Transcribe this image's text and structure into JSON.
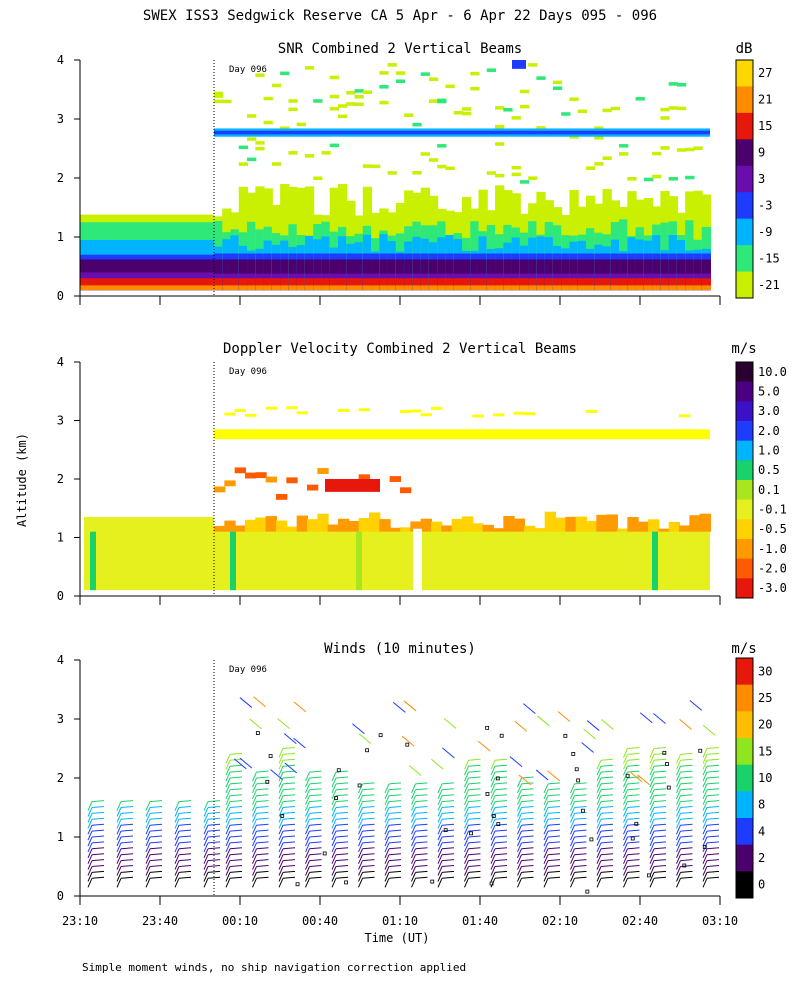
{
  "title": "SWEX ISS3 Sedgwick Reserve CA   5 Apr -  6 Apr 22 Days 095 - 096",
  "footnote": "Simple moment winds, no ship navigation correction applied",
  "ylabel": "Altitude (km)",
  "xlabel": "Time (UT)",
  "day_marker": "Day 096",
  "chart_data": [
    {
      "type": "heatmap",
      "title": "SNR Combined 2 Vertical Beams",
      "units": "dB",
      "ylim": [
        0,
        4
      ],
      "yticks": [
        0,
        1,
        2,
        3,
        4
      ],
      "colorbar_labels": [
        "27",
        "21",
        "15",
        "9",
        "3",
        "-3",
        "-9",
        "-15",
        "-21"
      ],
      "colorbar_colors": [
        "#ffd700",
        "#ff8c00",
        "#e8170b",
        "#4b006e",
        "#6a0dad",
        "#1e3cff",
        "#00b4ff",
        "#2ee87a",
        "#c8f000"
      ]
    },
    {
      "type": "heatmap",
      "title": "Doppler Velocity Combined 2 Vertical Beams",
      "units": "m/s",
      "ylim": [
        0,
        4
      ],
      "yticks": [
        0,
        1,
        2,
        3,
        4
      ],
      "colorbar_labels": [
        "10.0",
        "5.0",
        "3.0",
        "2.0",
        "1.0",
        "0.5",
        "0.1",
        "-0.1",
        "-0.5",
        "-1.0",
        "-2.0",
        "-3.0"
      ],
      "colorbar_colors": [
        "#2a0030",
        "#4b0082",
        "#3a10c8",
        "#1e3cff",
        "#00b4ff",
        "#19d26a",
        "#a8e61e",
        "#e6f01e",
        "#ffd200",
        "#ff9a00",
        "#ff5a00",
        "#e8170b"
      ]
    },
    {
      "type": "scatter",
      "title": "Winds (10 minutes)",
      "units": "m/s",
      "ylim": [
        0,
        4
      ],
      "yticks": [
        0,
        1,
        2,
        3,
        4
      ],
      "colorbar_labels": [
        "30",
        "25",
        "20",
        "15",
        "10",
        "8",
        "4",
        "2",
        "0"
      ],
      "colorbar_colors": [
        "#e8170b",
        "#ff8c00",
        "#ffbe00",
        "#8fe61e",
        "#19d26a",
        "#00b4ff",
        "#1e3cff",
        "#4b006e",
        "#000000"
      ]
    }
  ],
  "x_ticks": [
    "23:10",
    "23:40",
    "00:10",
    "00:40",
    "01:10",
    "01:40",
    "02:10",
    "02:40",
    "03:10"
  ]
}
